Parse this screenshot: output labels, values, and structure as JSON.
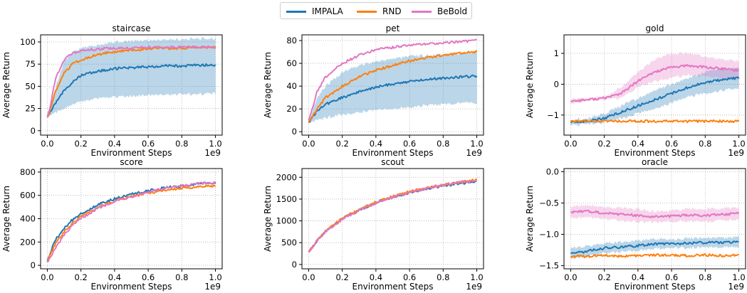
{
  "legend": [
    {
      "name": "IMPALA",
      "color": "#1f77b4"
    },
    {
      "name": "RND",
      "color": "#ff7f0e"
    },
    {
      "name": "BeBold",
      "color": "#e377c2"
    }
  ],
  "chart_data": [
    {
      "type": "line",
      "title": "staircase",
      "xlabel": "Environment Steps",
      "ylabel": "Average Return",
      "x_multiplier": "1e9",
      "xlim": [
        0,
        1.0
      ],
      "ylim": [
        -5,
        108
      ],
      "xticks": [
        "0.0",
        "0.2",
        "0.4",
        "0.6",
        "0.8",
        "1.0"
      ],
      "yticks": [
        0,
        25,
        50,
        75,
        100
      ],
      "grid": true,
      "x": [
        0.0,
        0.02,
        0.05,
        0.1,
        0.15,
        0.2,
        0.3,
        0.4,
        0.5,
        0.6,
        0.7,
        0.8,
        0.9,
        1.0
      ],
      "series": [
        {
          "name": "IMPALA",
          "values": [
            15,
            22,
            32,
            45,
            55,
            62,
            67,
            70,
            71,
            72,
            73,
            73,
            74,
            74
          ],
          "band_low": [
            15,
            18,
            20,
            25,
            30,
            33,
            36,
            38,
            39,
            40,
            40,
            41,
            41,
            42
          ],
          "band_high": [
            15,
            28,
            50,
            78,
            88,
            93,
            97,
            100,
            101,
            102,
            103,
            103,
            104,
            104
          ]
        },
        {
          "name": "RND",
          "values": [
            15,
            25,
            45,
            65,
            75,
            80,
            86,
            89,
            91,
            92,
            93,
            93,
            94,
            94
          ]
        },
        {
          "name": "BeBold",
          "values": [
            15,
            30,
            60,
            80,
            87,
            90,
            92,
            93,
            93,
            94,
            94,
            94,
            94,
            94
          ]
        }
      ]
    },
    {
      "type": "line",
      "title": "pet",
      "xlabel": "Environment Steps",
      "ylabel": "Average Return",
      "x_multiplier": "1e9",
      "xlim": [
        0,
        1.0
      ],
      "ylim": [
        -3,
        85
      ],
      "xticks": [
        "0.0",
        "0.2",
        "0.4",
        "0.6",
        "0.8",
        "1.0"
      ],
      "yticks": [
        0,
        20,
        40,
        60,
        80
      ],
      "grid": true,
      "x": [
        0.0,
        0.05,
        0.1,
        0.2,
        0.3,
        0.4,
        0.5,
        0.6,
        0.7,
        0.8,
        0.9,
        1.0
      ],
      "series": [
        {
          "name": "IMPALA",
          "values": [
            8,
            18,
            24,
            30,
            35,
            39,
            42,
            44,
            46,
            47,
            48,
            49
          ],
          "band_low": [
            8,
            10,
            12,
            15,
            17,
            19,
            20,
            22,
            23,
            24,
            25,
            25
          ],
          "band_high": [
            8,
            30,
            40,
            52,
            58,
            62,
            64,
            66,
            67,
            68,
            69,
            70
          ]
        },
        {
          "name": "RND",
          "values": [
            8,
            20,
            30,
            40,
            48,
            54,
            58,
            62,
            65,
            67,
            69,
            70
          ]
        },
        {
          "name": "BeBold",
          "values": [
            10,
            35,
            48,
            60,
            67,
            72,
            74,
            76,
            77,
            78,
            79,
            80
          ]
        }
      ]
    },
    {
      "type": "line",
      "title": "gold",
      "xlabel": "Environment Steps",
      "ylabel": "Average Return",
      "x_multiplier": "1e9",
      "xlim": [
        0,
        1.0
      ],
      "ylim": [
        -1.65,
        1.6
      ],
      "xticks": [
        "0.0",
        "0.2",
        "0.4",
        "0.6",
        "0.8",
        "1.0"
      ],
      "yticks": [
        -1,
        0,
        1
      ],
      "grid": true,
      "x": [
        0.0,
        0.1,
        0.2,
        0.3,
        0.4,
        0.5,
        0.6,
        0.7,
        0.8,
        0.9,
        1.0
      ],
      "series": [
        {
          "name": "IMPALA",
          "values": [
            -1.25,
            -1.2,
            -1.1,
            -0.9,
            -0.7,
            -0.5,
            -0.3,
            -0.1,
            0.05,
            0.15,
            0.2
          ],
          "band_low": [
            -1.35,
            -1.3,
            -1.25,
            -1.1,
            -0.95,
            -0.8,
            -0.6,
            -0.4,
            -0.3,
            -0.2,
            -0.15
          ],
          "band_high": [
            -1.15,
            -1.1,
            -0.95,
            -0.7,
            -0.45,
            -0.2,
            0.0,
            0.2,
            0.4,
            0.5,
            0.55
          ]
        },
        {
          "name": "RND",
          "values": [
            -1.2,
            -1.2,
            -1.2,
            -1.2,
            -1.2,
            -1.2,
            -1.2,
            -1.2,
            -1.2,
            -1.2,
            -1.2
          ]
        },
        {
          "name": "BeBold",
          "values": [
            -0.55,
            -0.5,
            -0.45,
            -0.3,
            0.1,
            0.4,
            0.55,
            0.6,
            0.55,
            0.5,
            0.45
          ],
          "band_low": [
            -0.6,
            -0.55,
            -0.5,
            -0.45,
            -0.1,
            0.1,
            0.2,
            0.3,
            0.25,
            0.2,
            0.15
          ],
          "band_high": [
            -0.5,
            -0.45,
            -0.4,
            -0.1,
            0.4,
            0.8,
            1.0,
            1.0,
            0.9,
            0.8,
            0.75
          ]
        }
      ]
    },
    {
      "type": "line",
      "title": "score",
      "xlabel": "Environment Steps",
      "ylabel": "Average Return",
      "x_multiplier": "1e9",
      "xlim": [
        0,
        1.0
      ],
      "ylim": [
        -30,
        830
      ],
      "xticks": [
        "0.0",
        "0.2",
        "0.4",
        "0.6",
        "0.8",
        "1.0"
      ],
      "yticks": [
        0,
        200,
        400,
        600,
        800
      ],
      "grid": true,
      "x": [
        0.0,
        0.02,
        0.05,
        0.1,
        0.15,
        0.2,
        0.3,
        0.4,
        0.5,
        0.6,
        0.7,
        0.8,
        0.9,
        1.0
      ],
      "series": [
        {
          "name": "IMPALA",
          "values": [
            30,
            120,
            220,
            320,
            390,
            440,
            520,
            570,
            610,
            640,
            665,
            680,
            700,
            710
          ]
        },
        {
          "name": "RND",
          "values": [
            30,
            100,
            190,
            290,
            360,
            420,
            500,
            550,
            590,
            620,
            645,
            660,
            675,
            680
          ]
        },
        {
          "name": "BeBold",
          "values": [
            30,
            70,
            150,
            260,
            340,
            400,
            490,
            550,
            590,
            630,
            660,
            680,
            700,
            710
          ]
        }
      ]
    },
    {
      "type": "line",
      "title": "scout",
      "xlabel": "Environment Steps",
      "ylabel": "Average Return",
      "x_multiplier": "1e9",
      "xlim": [
        0,
        1.0
      ],
      "ylim": [
        -100,
        2200
      ],
      "xticks": [
        "0.0",
        "0.2",
        "0.4",
        "0.6",
        "0.8",
        "1.0"
      ],
      "yticks": [
        0,
        500,
        1000,
        1500,
        2000
      ],
      "grid": true,
      "x": [
        0.0,
        0.05,
        0.1,
        0.2,
        0.3,
        0.4,
        0.5,
        0.6,
        0.7,
        0.8,
        0.9,
        1.0
      ],
      "series": [
        {
          "name": "IMPALA",
          "values": [
            280,
            550,
            750,
            1050,
            1250,
            1420,
            1550,
            1650,
            1730,
            1800,
            1860,
            1900
          ]
        },
        {
          "name": "RND",
          "values": [
            280,
            560,
            760,
            1060,
            1260,
            1430,
            1560,
            1670,
            1760,
            1830,
            1890,
            1940
          ]
        },
        {
          "name": "BeBold",
          "values": [
            280,
            540,
            740,
            1040,
            1240,
            1410,
            1540,
            1650,
            1750,
            1820,
            1880,
            1920
          ]
        }
      ]
    },
    {
      "type": "line",
      "title": "oracle",
      "xlabel": "Environment Steps",
      "ylabel": "Average Return",
      "x_multiplier": "1e9",
      "xlim": [
        0,
        1.0
      ],
      "ylim": [
        -1.55,
        0.05
      ],
      "xticks": [
        "0.0",
        "0.2",
        "0.4",
        "0.6",
        "0.8",
        "1.0"
      ],
      "yticks": [
        -1.5,
        -1.0,
        -0.5,
        0.0
      ],
      "ytick_labels": [
        "−1.5",
        "−1.0",
        "−0.5",
        "0.0"
      ],
      "grid": true,
      "x": [
        0.0,
        0.1,
        0.2,
        0.3,
        0.4,
        0.5,
        0.6,
        0.7,
        0.8,
        0.9,
        1.0
      ],
      "series": [
        {
          "name": "IMPALA",
          "values": [
            -1.3,
            -1.27,
            -1.22,
            -1.2,
            -1.18,
            -1.15,
            -1.15,
            -1.14,
            -1.13,
            -1.13,
            -1.12
          ],
          "band_low": [
            -1.38,
            -1.35,
            -1.3,
            -1.28,
            -1.26,
            -1.23,
            -1.22,
            -1.22,
            -1.21,
            -1.2,
            -1.2
          ],
          "band_high": [
            -1.22,
            -1.19,
            -1.14,
            -1.12,
            -1.1,
            -1.07,
            -1.08,
            -1.06,
            -1.05,
            -1.06,
            -1.04
          ]
        },
        {
          "name": "RND",
          "values": [
            -1.35,
            -1.35,
            -1.33,
            -1.35,
            -1.34,
            -1.33,
            -1.33,
            -1.34,
            -1.33,
            -1.34,
            -1.33
          ]
        },
        {
          "name": "BeBold",
          "values": [
            -0.65,
            -0.63,
            -0.66,
            -0.68,
            -0.7,
            -0.72,
            -0.71,
            -0.69,
            -0.7,
            -0.68,
            -0.67
          ],
          "band_low": [
            -0.75,
            -0.73,
            -0.76,
            -0.78,
            -0.8,
            -0.81,
            -0.8,
            -0.79,
            -0.8,
            -0.78,
            -0.77
          ],
          "band_high": [
            -0.55,
            -0.53,
            -0.56,
            -0.58,
            -0.6,
            -0.63,
            -0.62,
            -0.59,
            -0.6,
            -0.58,
            -0.57
          ]
        }
      ]
    }
  ]
}
